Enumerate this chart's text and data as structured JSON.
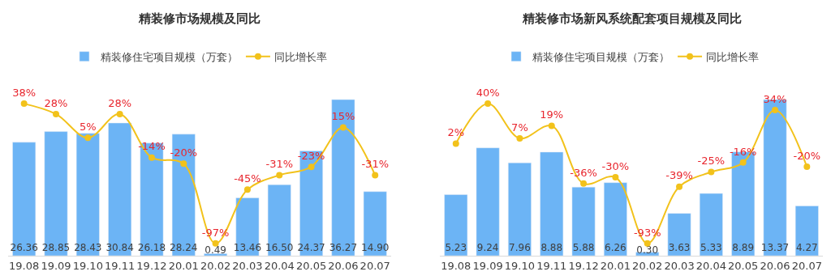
{
  "chart_data": [
    {
      "type": "bar",
      "title": "精装修市场规模及同比",
      "categories": [
        "19.08",
        "19.09",
        "19.10",
        "19.11",
        "19.12",
        "20.01",
        "20.02",
        "20.03",
        "20.04",
        "20.05",
        "20.06",
        "20.07"
      ],
      "legend": "top",
      "series": [
        {
          "name": "精装修住宅项目规模（万套）",
          "color": "#6cb4f5",
          "values": [
            26.36,
            28.85,
            28.43,
            30.84,
            26.18,
            28.24,
            0.49,
            13.46,
            16.5,
            24.37,
            36.27,
            14.9
          ],
          "value_labels": [
            "26.36",
            "28.85",
            "28.43",
            "30.84",
            "26.18",
            "28.24",
            "0.49",
            "13.46",
            "16.50",
            "24.37",
            "36.27",
            "14.90"
          ]
        },
        {
          "name": "同比增长率",
          "type": "line",
          "axis": "y2",
          "color": "#f2c21b",
          "marker": "circle",
          "values": [
            38,
            28,
            5,
            28,
            -14,
            -20,
            -97,
            -45,
            -31,
            -23,
            15,
            -31
          ],
          "value_labels": [
            "38%",
            "28%",
            "5%",
            "28%",
            "-14%",
            "-20%",
            "-97%",
            "-45%",
            "-31%",
            "-23%",
            "15%",
            "-31%"
          ]
        }
      ]
    },
    {
      "type": "bar",
      "title": "精装修市场新风系统配套项目规模及同比",
      "categories": [
        "19.08",
        "19.09",
        "19.10",
        "19.11",
        "19.12",
        "20.01",
        "20.02",
        "20.03",
        "20.04",
        "20.05",
        "20.06",
        "20.07"
      ],
      "legend": "top",
      "series": [
        {
          "name": "精装修住宅项目规模（万套）",
          "color": "#6cb4f5",
          "values": [
            5.23,
            9.24,
            7.96,
            8.88,
            5.88,
            6.26,
            0.3,
            3.63,
            5.33,
            8.89,
            13.37,
            4.27
          ],
          "value_labels": [
            "5.23",
            "9.24",
            "7.96",
            "8.88",
            "5.88",
            "6.26",
            "0.30",
            "3.63",
            "5.33",
            "8.89",
            "13.37",
            "4.27"
          ]
        },
        {
          "name": "同比增长率",
          "type": "line",
          "axis": "y2",
          "color": "#f2c21b",
          "marker": "circle",
          "values": [
            2,
            40,
            7,
            19,
            -36,
            -30,
            -93,
            -39,
            -25,
            -16,
            34,
            -20
          ],
          "value_labels": [
            "2%",
            "40%",
            "7%",
            "19%",
            "-36%",
            "-30%",
            "-93%",
            "-39%",
            "-25%",
            "-16%",
            "34%",
            "-20%"
          ]
        }
      ]
    }
  ]
}
